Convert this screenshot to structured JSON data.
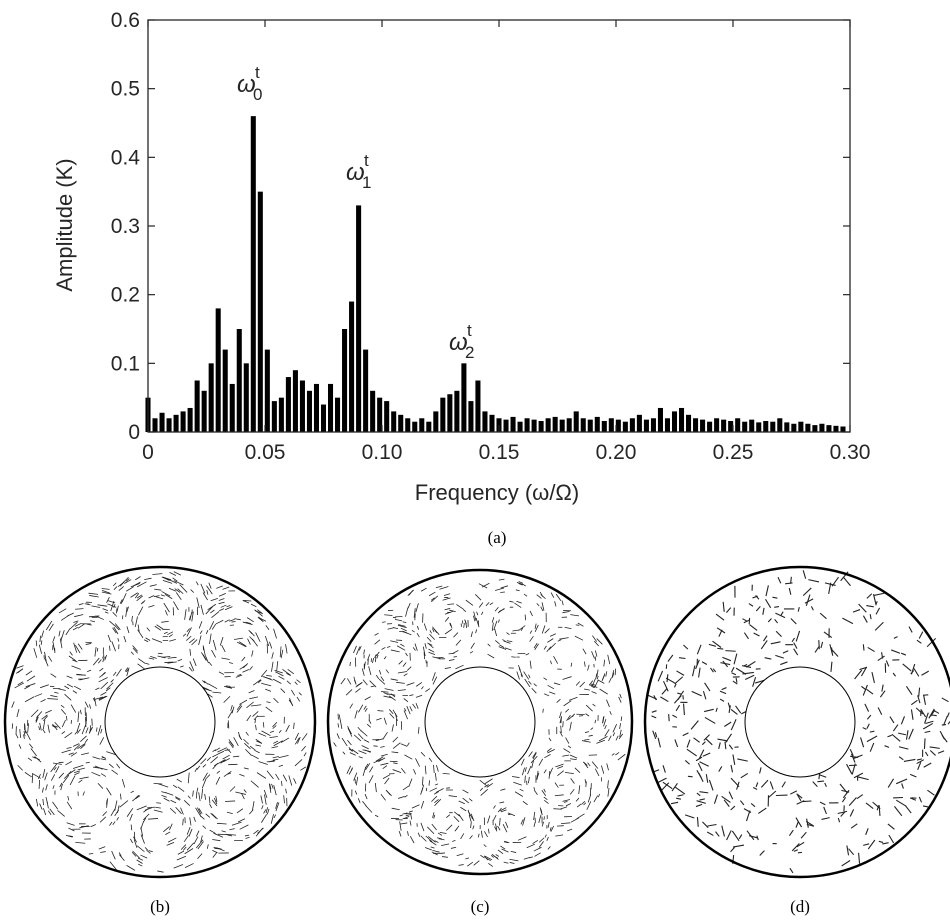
{
  "chart_data": {
    "type": "bar",
    "xlabel": "Frequency (ω/Ω)",
    "ylabel": "Amplitude (K)",
    "color": "#000000",
    "x": [
      0,
      0.003,
      0.006,
      0.009,
      0.012,
      0.015,
      0.018,
      0.021,
      0.024,
      0.027,
      0.03,
      0.033,
      0.036,
      0.039,
      0.042,
      0.045,
      0.048,
      0.051,
      0.054,
      0.057,
      0.06,
      0.063,
      0.066,
      0.069,
      0.072,
      0.075,
      0.078,
      0.081,
      0.084,
      0.087,
      0.09,
      0.093,
      0.096,
      0.099,
      0.102,
      0.105,
      0.108,
      0.111,
      0.114,
      0.117,
      0.12,
      0.123,
      0.126,
      0.129,
      0.132,
      0.135,
      0.138,
      0.141,
      0.144,
      0.147,
      0.15,
      0.153,
      0.156,
      0.159,
      0.162,
      0.165,
      0.168,
      0.171,
      0.174,
      0.177,
      0.18,
      0.183,
      0.186,
      0.189,
      0.192,
      0.195,
      0.198,
      0.201,
      0.204,
      0.207,
      0.21,
      0.213,
      0.216,
      0.219,
      0.222,
      0.225,
      0.228,
      0.231,
      0.234,
      0.237,
      0.24,
      0.243,
      0.246,
      0.249,
      0.252,
      0.255,
      0.258,
      0.261,
      0.264,
      0.267,
      0.27,
      0.273,
      0.276,
      0.279,
      0.282,
      0.285,
      0.288,
      0.291,
      0.294,
      0.297
    ],
    "values": [
      0.05,
      0.02,
      0.028,
      0.02,
      0.025,
      0.03,
      0.035,
      0.075,
      0.06,
      0.1,
      0.18,
      0.12,
      0.07,
      0.15,
      0.1,
      0.46,
      0.35,
      0.12,
      0.045,
      0.05,
      0.08,
      0.09,
      0.075,
      0.06,
      0.07,
      0.04,
      0.07,
      0.05,
      0.15,
      0.19,
      0.33,
      0.12,
      0.06,
      0.05,
      0.045,
      0.03,
      0.025,
      0.02,
      0.015,
      0.02,
      0.015,
      0.03,
      0.05,
      0.055,
      0.06,
      0.1,
      0.045,
      0.075,
      0.03,
      0.025,
      0.02,
      0.018,
      0.022,
      0.015,
      0.02,
      0.018,
      0.016,
      0.02,
      0.022,
      0.018,
      0.02,
      0.03,
      0.02,
      0.018,
      0.022,
      0.016,
      0.02,
      0.018,
      0.015,
      0.02,
      0.025,
      0.018,
      0.02,
      0.035,
      0.02,
      0.03,
      0.035,
      0.025,
      0.02,
      0.018,
      0.015,
      0.02,
      0.018,
      0.016,
      0.02,
      0.015,
      0.018,
      0.014,
      0.016,
      0.015,
      0.02,
      0.014,
      0.012,
      0.015,
      0.012,
      0.01,
      0.012,
      0.01,
      0.009,
      0.008
    ],
    "xlim": [
      0,
      0.3
    ],
    "ylim": [
      0,
      0.6
    ],
    "xticks": [
      0,
      0.05,
      {
        "value": 0.1,
        "label": "0.10"
      },
      0.15,
      {
        "value": 0.2,
        "label": "0.20"
      },
      0.25,
      {
        "value": 0.3,
        "label": "0.30"
      }
    ],
    "yticks": [
      0,
      0.1,
      0.2,
      0.3,
      0.4,
      0.5,
      0.6
    ],
    "annotations": [
      {
        "text": "ω",
        "sup": "t",
        "sub": "0"
      },
      {
        "text": "ω",
        "sup": "t",
        "sub": "1"
      },
      {
        "text": "ω",
        "sup": "t",
        "sub": "2"
      }
    ]
  },
  "captions": [
    "(a)",
    "(b)",
    "(c)",
    "(d)"
  ]
}
